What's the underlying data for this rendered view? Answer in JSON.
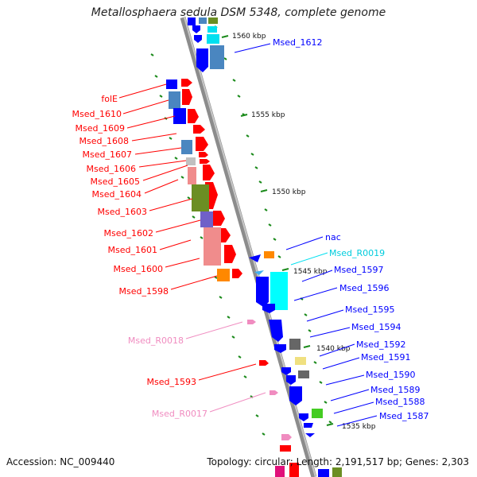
{
  "title": "Metallosphaera sedula DSM 5348, complete genome",
  "footer": {
    "accession": "Accession: NC_009440",
    "stats": "Topology: circular; Length: 2,191,517 bp; Genes: 2,303"
  },
  "colors": {
    "red": "#ff0000",
    "blue": "#0000ff",
    "cyan": "#00e0f0",
    "pink": "#f08cc0",
    "backbone": "#8c8c8c",
    "tick": "#1a8a1a"
  },
  "ticks": [
    {
      "label": "1560 kbp"
    },
    {
      "label": "1555 kbp"
    },
    {
      "label": "1550 kbp"
    },
    {
      "label": "1545 kbp"
    },
    {
      "label": "1540 kbp"
    },
    {
      "label": "1535 kbp"
    }
  ],
  "left_labels": [
    {
      "text": "folE",
      "color": "red"
    },
    {
      "text": "Msed_1610",
      "color": "red"
    },
    {
      "text": "Msed_1609",
      "color": "red"
    },
    {
      "text": "Msed_1608",
      "color": "red"
    },
    {
      "text": "Msed_1607",
      "color": "red"
    },
    {
      "text": "Msed_1606",
      "color": "red"
    },
    {
      "text": "Msed_1605",
      "color": "red"
    },
    {
      "text": "Msed_1604",
      "color": "red"
    },
    {
      "text": "Msed_1603",
      "color": "red"
    },
    {
      "text": "Msed_1602",
      "color": "red"
    },
    {
      "text": "Msed_1601",
      "color": "red"
    },
    {
      "text": "Msed_1600",
      "color": "red"
    },
    {
      "text": "Msed_1598",
      "color": "red"
    },
    {
      "text": "Msed_R0018",
      "color": "pink"
    },
    {
      "text": "Msed_1593",
      "color": "red"
    },
    {
      "text": "Msed_R0017",
      "color": "pink"
    }
  ],
  "right_labels": [
    {
      "text": "Msed_1612",
      "color": "blue"
    },
    {
      "text": "nac",
      "color": "blue"
    },
    {
      "text": "Msed_R0019",
      "color": "cyan"
    },
    {
      "text": "Msed_1597",
      "color": "blue"
    },
    {
      "text": "Msed_1596",
      "color": "blue"
    },
    {
      "text": "Msed_1595",
      "color": "blue"
    },
    {
      "text": "Msed_1594",
      "color": "blue"
    },
    {
      "text": "Msed_1592",
      "color": "blue"
    },
    {
      "text": "Msed_1591",
      "color": "blue"
    },
    {
      "text": "Msed_1590",
      "color": "blue"
    },
    {
      "text": "Msed_1589",
      "color": "blue"
    },
    {
      "text": "Msed_1588",
      "color": "blue"
    },
    {
      "text": "Msed_1587",
      "color": "blue"
    }
  ]
}
